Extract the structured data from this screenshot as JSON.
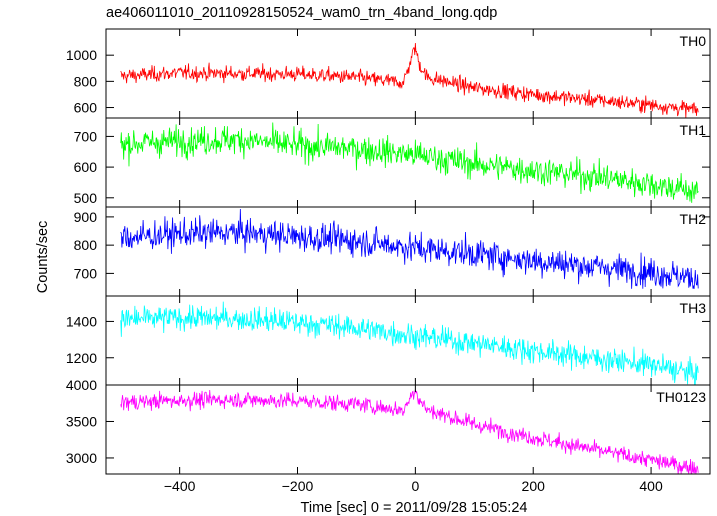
{
  "chart_data": {
    "type": "line",
    "title": "ae406011010_20110928150524_wam0_trn_4band_long.qdp",
    "xlabel": "Time [sec] 0 = 2011/09/28 15:05:24",
    "ylabel": "Counts/sec",
    "xlim": [
      -525,
      500
    ],
    "xticks": [
      -400,
      -200,
      0,
      200,
      400
    ],
    "xtick_labels": [
      "−400",
      "−200",
      "0",
      "200",
      "400"
    ],
    "grid": false,
    "panels": [
      {
        "name": "TH0",
        "color": "#ff0000",
        "ylim": [
          520,
          1200
        ],
        "yticks": [
          600,
          800,
          1000
        ],
        "x": [
          -500,
          -400,
          -300,
          -200,
          -100,
          -20,
          0,
          5,
          20,
          100,
          200,
          300,
          400,
          480
        ],
        "values": [
          840,
          865,
          860,
          855,
          830,
          790,
          1070,
          950,
          830,
          750,
          700,
          660,
          620,
          580
        ]
      },
      {
        "name": "TH1",
        "color": "#00ff00",
        "ylim": [
          470,
          760
        ],
        "yticks": [
          500,
          600,
          700
        ],
        "x": [
          -500,
          -400,
          -300,
          -200,
          -100,
          0,
          100,
          200,
          300,
          400,
          480
        ],
        "values": [
          675,
          685,
          690,
          670,
          660,
          640,
          610,
          590,
          570,
          545,
          520
        ]
      },
      {
        "name": "TH2",
        "color": "#0000ff",
        "ylim": [
          620,
          935
        ],
        "yticks": [
          700,
          800,
          900
        ],
        "x": [
          -500,
          -400,
          -300,
          -200,
          -100,
          0,
          100,
          200,
          300,
          400,
          480
        ],
        "values": [
          825,
          840,
          845,
          830,
          815,
          790,
          770,
          745,
          725,
          705,
          680
        ]
      },
      {
        "name": "TH3",
        "color": "#00ffff",
        "ylim": [
          1050,
          1540
        ],
        "yticks": [
          1200,
          1400
        ],
        "x": [
          -500,
          -400,
          -300,
          -200,
          -100,
          0,
          100,
          200,
          300,
          400,
          480
        ],
        "values": [
          1410,
          1420,
          1415,
          1395,
          1365,
          1320,
          1280,
          1240,
          1200,
          1160,
          1110
        ]
      },
      {
        "name": "TH0123",
        "color": "#ff00ff",
        "ylim": [
          2780,
          4000
        ],
        "yticks": [
          3000,
          3500,
          4000
        ],
        "x": [
          -500,
          -400,
          -300,
          -200,
          -100,
          -20,
          0,
          5,
          20,
          100,
          200,
          300,
          400,
          480
        ],
        "values": [
          3760,
          3790,
          3800,
          3780,
          3740,
          3650,
          3960,
          3820,
          3660,
          3460,
          3280,
          3120,
          2970,
          2850
        ]
      }
    ]
  }
}
